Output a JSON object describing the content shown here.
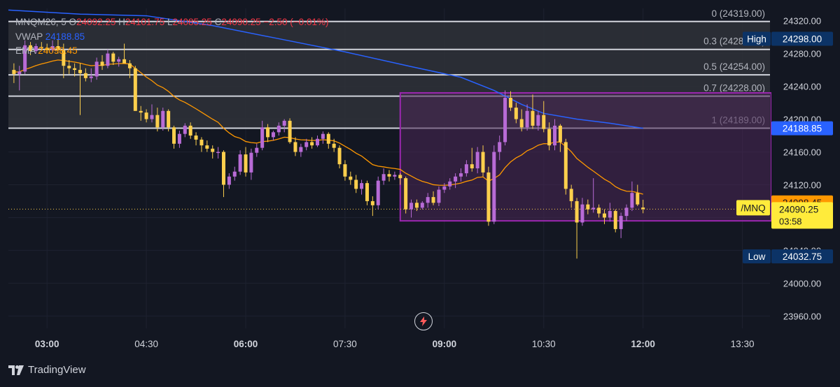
{
  "legend": {
    "symbol": "MNQM26, 5",
    "o_label": "O",
    "o_value": "24092.25",
    "h_label": "H",
    "h_value": "24101.75",
    "l_label": "L",
    "l_value": "24085.25",
    "c_label": "C",
    "c_value": "24090.25",
    "change": "−2.50 (−0.01%)",
    "vwap_label": "VWAP",
    "vwap_value": "24188.85",
    "ema_label": "EMA",
    "ema_value": "24098.45"
  },
  "colors": {
    "background": "#131722",
    "grid": "#1e2230",
    "up": "#b86bd6",
    "down": "#fccf4d",
    "vwap": "#2962ff",
    "ema": "#ff9800",
    "fib_line": "#d1d4dc",
    "fib_fill": "#2f3138",
    "box": "#9c27b0",
    "box_fill": "#4a2655",
    "high_low_tag": "#0c3366",
    "last_price": "#ffeb3b"
  },
  "brand": "TradingView",
  "icons": [
    "tradingview-logo-icon",
    "lightning-icon"
  ],
  "chart_data": {
    "type": "candlestick",
    "symbol": "MNQM26",
    "timeframe": "5",
    "x_ticks": [
      "03:00",
      "04:30",
      "06:00",
      "07:30",
      "09:00",
      "10:30",
      "12:00",
      "13:30"
    ],
    "x_tick_bold": [
      true,
      false,
      true,
      false,
      true,
      false,
      true,
      false
    ],
    "x_range": [
      "02:25",
      "13:55"
    ],
    "y_ticks": [
      24320,
      24280,
      24240,
      24200,
      24160,
      24120,
      24080,
      24040,
      24000,
      23960
    ],
    "y_tick_labels": [
      "24320.00",
      "24280.00",
      "24240.00",
      "24200.00",
      "24160.00",
      "24120.00",
      "24080.00",
      "24040.00",
      "24000.00",
      "23960.00"
    ],
    "ylim": [
      23945,
      24335
    ],
    "fib_levels": [
      {
        "label": "0 (24319.00)",
        "price": 24319.0
      },
      {
        "label": "0.3 (24285.00)",
        "price": 24285.0
      },
      {
        "label": "0.5 (24254.00)",
        "price": 24254.0
      },
      {
        "label": "0.7 (24228.00)",
        "price": 24228.0
      },
      {
        "label": "1 (24189.00)",
        "price": 24189.0
      }
    ],
    "rectangle": {
      "t_start": "08:20",
      "t_end": "13:55",
      "top": 24232,
      "bottom": 24076
    },
    "price_tags": {
      "high_label": "High",
      "high_value": "24298.00",
      "high_price": 24298.0,
      "vwap_value": "24188.85",
      "vwap_price": 24188.85,
      "ema_value": "24098.45",
      "ema_price": 24098.45,
      "symbol_label": "/MNQ",
      "last_value": "24090.25",
      "last_price": 24090.25,
      "countdown": "03:58",
      "low_label": "Low",
      "low_value": "24032.75",
      "low_price": 24032.75
    },
    "candles": [
      {
        "t": "02:30",
        "o": 24260,
        "h": 24268,
        "l": 24244,
        "c": 24255
      },
      {
        "t": "02:35",
        "o": 24255,
        "h": 24265,
        "l": 24235,
        "c": 24258
      },
      {
        "t": "02:40",
        "o": 24258,
        "h": 24296,
        "l": 24255,
        "c": 24290
      },
      {
        "t": "02:45",
        "o": 24290,
        "h": 24294,
        "l": 24278,
        "c": 24283
      },
      {
        "t": "02:50",
        "o": 24283,
        "h": 24292,
        "l": 24280,
        "c": 24289
      },
      {
        "t": "02:55",
        "o": 24288,
        "h": 24294,
        "l": 24284,
        "c": 24287
      },
      {
        "t": "03:00",
        "o": 24287,
        "h": 24292,
        "l": 24280,
        "c": 24284
      },
      {
        "t": "03:05",
        "o": 24284,
        "h": 24296,
        "l": 24282,
        "c": 24289
      },
      {
        "t": "03:10",
        "o": 24289,
        "h": 24297,
        "l": 24280,
        "c": 24284
      },
      {
        "t": "03:15",
        "o": 24284,
        "h": 24292,
        "l": 24250,
        "c": 24265
      },
      {
        "t": "03:20",
        "o": 24265,
        "h": 24272,
        "l": 24255,
        "c": 24262
      },
      {
        "t": "03:25",
        "o": 24262,
        "h": 24268,
        "l": 24252,
        "c": 24260
      },
      {
        "t": "03:30",
        "o": 24260,
        "h": 24268,
        "l": 24205,
        "c": 24256
      },
      {
        "t": "03:35",
        "o": 24256,
        "h": 24262,
        "l": 24246,
        "c": 24250
      },
      {
        "t": "03:40",
        "o": 24250,
        "h": 24262,
        "l": 24245,
        "c": 24252
      },
      {
        "t": "03:45",
        "o": 24252,
        "h": 24275,
        "l": 24248,
        "c": 24270
      },
      {
        "t": "03:50",
        "o": 24270,
        "h": 24278,
        "l": 24260,
        "c": 24265
      },
      {
        "t": "03:55",
        "o": 24265,
        "h": 24285,
        "l": 24262,
        "c": 24280
      },
      {
        "t": "04:00",
        "o": 24280,
        "h": 24282,
        "l": 24266,
        "c": 24270
      },
      {
        "t": "04:05",
        "o": 24270,
        "h": 24276,
        "l": 24264,
        "c": 24273
      },
      {
        "t": "04:10",
        "o": 24273,
        "h": 24292,
        "l": 24268,
        "c": 24268
      },
      {
        "t": "04:15",
        "o": 24268,
        "h": 24272,
        "l": 24250,
        "c": 24262
      },
      {
        "t": "04:20",
        "o": 24262,
        "h": 24265,
        "l": 24210,
        "c": 24210
      },
      {
        "t": "04:25",
        "o": 24210,
        "h": 24216,
        "l": 24198,
        "c": 24208
      },
      {
        "t": "04:30",
        "o": 24208,
        "h": 24212,
        "l": 24196,
        "c": 24200
      },
      {
        "t": "04:35",
        "o": 24200,
        "h": 24218,
        "l": 24196,
        "c": 24205
      },
      {
        "t": "04:40",
        "o": 24205,
        "h": 24214,
        "l": 24185,
        "c": 24190
      },
      {
        "t": "04:45",
        "o": 24190,
        "h": 24214,
        "l": 24186,
        "c": 24210
      },
      {
        "t": "04:50",
        "o": 24210,
        "h": 24212,
        "l": 24185,
        "c": 24190
      },
      {
        "t": "04:55",
        "o": 24190,
        "h": 24192,
        "l": 24164,
        "c": 24170
      },
      {
        "t": "05:00",
        "o": 24170,
        "h": 24186,
        "l": 24165,
        "c": 24182
      },
      {
        "t": "05:05",
        "o": 24182,
        "h": 24195,
        "l": 24178,
        "c": 24192
      },
      {
        "t": "05:10",
        "o": 24192,
        "h": 24196,
        "l": 24176,
        "c": 24180
      },
      {
        "t": "05:15",
        "o": 24180,
        "h": 24184,
        "l": 24168,
        "c": 24175
      },
      {
        "t": "05:20",
        "o": 24175,
        "h": 24178,
        "l": 24160,
        "c": 24168
      },
      {
        "t": "05:25",
        "o": 24168,
        "h": 24174,
        "l": 24160,
        "c": 24164
      },
      {
        "t": "05:30",
        "o": 24164,
        "h": 24168,
        "l": 24152,
        "c": 24160
      },
      {
        "t": "05:35",
        "o": 24160,
        "h": 24166,
        "l": 24152,
        "c": 24160
      },
      {
        "t": "05:40",
        "o": 24160,
        "h": 24162,
        "l": 24105,
        "c": 24120
      },
      {
        "t": "05:45",
        "o": 24120,
        "h": 24134,
        "l": 24115,
        "c": 24130
      },
      {
        "t": "05:50",
        "o": 24130,
        "h": 24142,
        "l": 24125,
        "c": 24136
      },
      {
        "t": "05:55",
        "o": 24136,
        "h": 24162,
        "l": 24132,
        "c": 24157
      },
      {
        "t": "06:00",
        "o": 24157,
        "h": 24166,
        "l": 24130,
        "c": 24135
      },
      {
        "t": "06:05",
        "o": 24135,
        "h": 24164,
        "l": 24126,
        "c": 24159
      },
      {
        "t": "06:10",
        "o": 24159,
        "h": 24170,
        "l": 24154,
        "c": 24165
      },
      {
        "t": "06:15",
        "o": 24165,
        "h": 24198,
        "l": 24162,
        "c": 24190
      },
      {
        "t": "06:20",
        "o": 24190,
        "h": 24194,
        "l": 24172,
        "c": 24178
      },
      {
        "t": "06:25",
        "o": 24178,
        "h": 24186,
        "l": 24174,
        "c": 24184
      },
      {
        "t": "06:30",
        "o": 24184,
        "h": 24196,
        "l": 24180,
        "c": 24192
      },
      {
        "t": "06:35",
        "o": 24192,
        "h": 24200,
        "l": 24184,
        "c": 24198
      },
      {
        "t": "06:40",
        "o": 24198,
        "h": 24201,
        "l": 24170,
        "c": 24172
      },
      {
        "t": "06:45",
        "o": 24172,
        "h": 24178,
        "l": 24155,
        "c": 24160
      },
      {
        "t": "06:50",
        "o": 24160,
        "h": 24170,
        "l": 24154,
        "c": 24166
      },
      {
        "t": "06:55",
        "o": 24166,
        "h": 24176,
        "l": 24162,
        "c": 24172
      },
      {
        "t": "07:00",
        "o": 24172,
        "h": 24178,
        "l": 24164,
        "c": 24168
      },
      {
        "t": "07:05",
        "o": 24168,
        "h": 24180,
        "l": 24166,
        "c": 24176
      },
      {
        "t": "07:10",
        "o": 24176,
        "h": 24185,
        "l": 24170,
        "c": 24182
      },
      {
        "t": "07:15",
        "o": 24182,
        "h": 24184,
        "l": 24164,
        "c": 24170
      },
      {
        "t": "07:20",
        "o": 24170,
        "h": 24176,
        "l": 24160,
        "c": 24165
      },
      {
        "t": "07:25",
        "o": 24165,
        "h": 24168,
        "l": 24140,
        "c": 24145
      },
      {
        "t": "07:30",
        "o": 24145,
        "h": 24150,
        "l": 24125,
        "c": 24130
      },
      {
        "t": "07:35",
        "o": 24130,
        "h": 24136,
        "l": 24120,
        "c": 24126
      },
      {
        "t": "07:40",
        "o": 24126,
        "h": 24132,
        "l": 24110,
        "c": 24115
      },
      {
        "t": "07:45",
        "o": 24115,
        "h": 24126,
        "l": 24108,
        "c": 24122
      },
      {
        "t": "07:50",
        "o": 24122,
        "h": 24125,
        "l": 24095,
        "c": 24100
      },
      {
        "t": "07:55",
        "o": 24100,
        "h": 24106,
        "l": 24082,
        "c": 24095
      },
      {
        "t": "08:00",
        "o": 24095,
        "h": 24130,
        "l": 24090,
        "c": 24125
      },
      {
        "t": "08:05",
        "o": 24125,
        "h": 24140,
        "l": 24120,
        "c": 24133
      },
      {
        "t": "08:10",
        "o": 24133,
        "h": 24138,
        "l": 24124,
        "c": 24130
      },
      {
        "t": "08:15",
        "o": 24130,
        "h": 24136,
        "l": 24126,
        "c": 24132
      },
      {
        "t": "08:20",
        "o": 24132,
        "h": 24134,
        "l": 24120,
        "c": 24128
      },
      {
        "t": "08:25",
        "o": 24128,
        "h": 24130,
        "l": 24085,
        "c": 24090
      },
      {
        "t": "08:30",
        "o": 24090,
        "h": 24102,
        "l": 24080,
        "c": 24098
      },
      {
        "t": "08:35",
        "o": 24098,
        "h": 24102,
        "l": 24088,
        "c": 24092
      },
      {
        "t": "08:40",
        "o": 24092,
        "h": 24100,
        "l": 24090,
        "c": 24098
      },
      {
        "t": "08:45",
        "o": 24098,
        "h": 24110,
        "l": 24092,
        "c": 24105
      },
      {
        "t": "08:50",
        "o": 24105,
        "h": 24112,
        "l": 24095,
        "c": 24098
      },
      {
        "t": "08:55",
        "o": 24098,
        "h": 24118,
        "l": 24094,
        "c": 24114
      },
      {
        "t": "09:00",
        "o": 24114,
        "h": 24122,
        "l": 24110,
        "c": 24118
      },
      {
        "t": "09:05",
        "o": 24118,
        "h": 24128,
        "l": 24114,
        "c": 24124
      },
      {
        "t": "09:10",
        "o": 24124,
        "h": 24134,
        "l": 24116,
        "c": 24130
      },
      {
        "t": "09:15",
        "o": 24130,
        "h": 24140,
        "l": 24124,
        "c": 24134
      },
      {
        "t": "09:20",
        "o": 24134,
        "h": 24150,
        "l": 24130,
        "c": 24145
      },
      {
        "t": "09:25",
        "o": 24145,
        "h": 24165,
        "l": 24136,
        "c": 24140
      },
      {
        "t": "09:30",
        "o": 24140,
        "h": 24166,
        "l": 24134,
        "c": 24160
      },
      {
        "t": "09:35",
        "o": 24160,
        "h": 24168,
        "l": 24130,
        "c": 24135
      },
      {
        "t": "09:40",
        "o": 24135,
        "h": 24142,
        "l": 24070,
        "c": 24075
      },
      {
        "t": "09:45",
        "o": 24075,
        "h": 24168,
        "l": 24072,
        "c": 24160
      },
      {
        "t": "09:50",
        "o": 24160,
        "h": 24180,
        "l": 24150,
        "c": 24172
      },
      {
        "t": "09:55",
        "o": 24172,
        "h": 24235,
        "l": 24168,
        "c": 24226
      },
      {
        "t": "10:00",
        "o": 24226,
        "h": 24234,
        "l": 24210,
        "c": 24214
      },
      {
        "t": "10:05",
        "o": 24214,
        "h": 24220,
        "l": 24195,
        "c": 24200
      },
      {
        "t": "10:10",
        "o": 24200,
        "h": 24212,
        "l": 24185,
        "c": 24190
      },
      {
        "t": "10:15",
        "o": 24190,
        "h": 24218,
        "l": 24186,
        "c": 24210
      },
      {
        "t": "10:20",
        "o": 24210,
        "h": 24230,
        "l": 24188,
        "c": 24192
      },
      {
        "t": "10:25",
        "o": 24192,
        "h": 24210,
        "l": 24186,
        "c": 24205
      },
      {
        "t": "10:30",
        "o": 24205,
        "h": 24222,
        "l": 24184,
        "c": 24188
      },
      {
        "t": "10:35",
        "o": 24188,
        "h": 24196,
        "l": 24162,
        "c": 24168
      },
      {
        "t": "10:40",
        "o": 24168,
        "h": 24200,
        "l": 24162,
        "c": 24192
      },
      {
        "t": "10:45",
        "o": 24192,
        "h": 24194,
        "l": 24160,
        "c": 24172
      },
      {
        "t": "10:50",
        "o": 24172,
        "h": 24176,
        "l": 24108,
        "c": 24115
      },
      {
        "t": "10:55",
        "o": 24115,
        "h": 24120,
        "l": 24092,
        "c": 24100
      },
      {
        "t": "11:00",
        "o": 24100,
        "h": 24104,
        "l": 24030,
        "c": 24074
      },
      {
        "t": "11:05",
        "o": 24074,
        "h": 24104,
        "l": 24070,
        "c": 24096
      },
      {
        "t": "11:10",
        "o": 24096,
        "h": 24102,
        "l": 24084,
        "c": 24090
      },
      {
        "t": "11:15",
        "o": 24090,
        "h": 24128,
        "l": 24086,
        "c": 24092
      },
      {
        "t": "11:20",
        "o": 24092,
        "h": 24096,
        "l": 24080,
        "c": 24085
      },
      {
        "t": "11:25",
        "o": 24085,
        "h": 24090,
        "l": 24072,
        "c": 24080
      },
      {
        "t": "11:30",
        "o": 24080,
        "h": 24098,
        "l": 24075,
        "c": 24088
      },
      {
        "t": "11:35",
        "o": 24088,
        "h": 24090,
        "l": 24062,
        "c": 24066
      },
      {
        "t": "11:40",
        "o": 24066,
        "h": 24086,
        "l": 24055,
        "c": 24082
      },
      {
        "t": "11:45",
        "o": 24082,
        "h": 24096,
        "l": 24076,
        "c": 24092
      },
      {
        "t": "11:50",
        "o": 24092,
        "h": 24124,
        "l": 24088,
        "c": 24110
      },
      {
        "t": "11:55",
        "o": 24110,
        "h": 24120,
        "l": 24094,
        "c": 24096
      },
      {
        "t": "12:00",
        "o": 24092.25,
        "h": 24101.75,
        "l": 24085.25,
        "c": 24090.25
      }
    ],
    "vwap": [
      {
        "t": "02:25",
        "v": 24333
      },
      {
        "t": "03:30",
        "v": 24328
      },
      {
        "t": "04:30",
        "v": 24326
      },
      {
        "t": "05:30",
        "v": 24314
      },
      {
        "t": "06:30",
        "v": 24298
      },
      {
        "t": "07:30",
        "v": 24282
      },
      {
        "t": "08:30",
        "v": 24264
      },
      {
        "t": "09:15",
        "v": 24251
      },
      {
        "t": "09:45",
        "v": 24235
      },
      {
        "t": "10:10",
        "v": 24218
      },
      {
        "t": "10:30",
        "v": 24207
      },
      {
        "t": "11:00",
        "v": 24200
      },
      {
        "t": "11:30",
        "v": 24195
      },
      {
        "t": "12:00",
        "v": 24188.85
      }
    ],
    "ema_period": 20,
    "ema_last": 24098.45
  }
}
